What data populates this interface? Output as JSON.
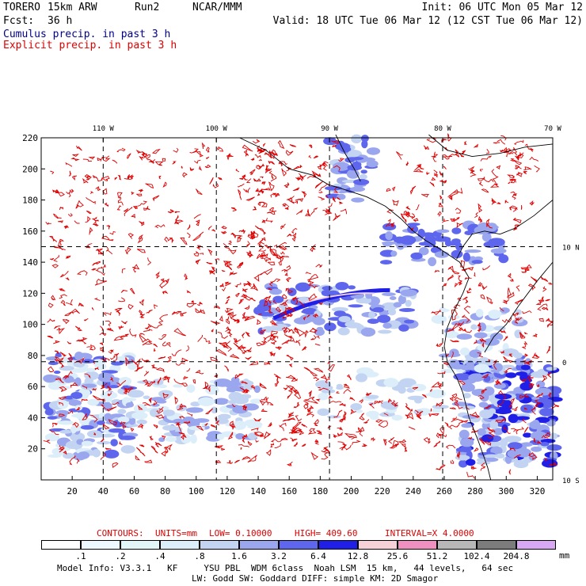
{
  "header": {
    "model": "TORERO",
    "resolution": "15km ARW",
    "run": "Run2",
    "org": "NCAR/MMM",
    "init": "Init: 06 UTC Mon 05 Mar 12",
    "fcst_label": "Fcst:",
    "fcst_value": "36 h",
    "valid": "Valid: 18 UTC Tue 06 Mar 12 (12 CST Tue 06 Mar 12)",
    "field1": "Cumulus precip. in past 3 h",
    "field2": "Explicit precip. in past 3 h"
  },
  "map": {
    "lon_labels": [
      "110 W",
      "100 W",
      "90 W",
      "80 W",
      "70 W"
    ],
    "lat_labels": [
      "10 N",
      "0",
      "10 S"
    ],
    "y_ticks": [
      "220",
      "200",
      "180",
      "160",
      "140",
      "120",
      "100",
      "80",
      "60",
      "40",
      "20"
    ],
    "x_ticks": [
      "20",
      "40",
      "60",
      "80",
      "100",
      "120",
      "140",
      "160",
      "180",
      "200",
      "220",
      "240",
      "260",
      "280",
      "300",
      "320"
    ]
  },
  "contour_info": {
    "contours": "CONTOURS:",
    "units": "UNITS=mm",
    "low": "LOW= 0.10000",
    "high": "HIGH= 409.60",
    "interval": "INTERVAL=X 4.0000"
  },
  "colorbar": {
    "labels": [
      ".1",
      ".2",
      ".4",
      ".8",
      "1.6",
      "3.2",
      "6.4",
      "12.8",
      "25.6",
      "51.2",
      "102.4",
      "204.8"
    ],
    "unit": "mm",
    "colors": [
      "#ffffff",
      "#eef8ff",
      "#e2f6f8",
      "#dceefa",
      "#c2d4f2",
      "#9aa6ee",
      "#5d66ec",
      "#1f1fe8",
      "#f6d2d8",
      "#f090c0",
      "#b8b8b8",
      "#7c7c7c",
      "#d8a8f4"
    ]
  },
  "footer": {
    "line1": "Model Info: V3.3.1   KF     YSU PBL  WDM 6class  Noah LSM  15 km,   44 levels,   64 sec",
    "line2": "LW: Godd SW: Goddard DIFF: simple KM: 2D Smagor"
  }
}
